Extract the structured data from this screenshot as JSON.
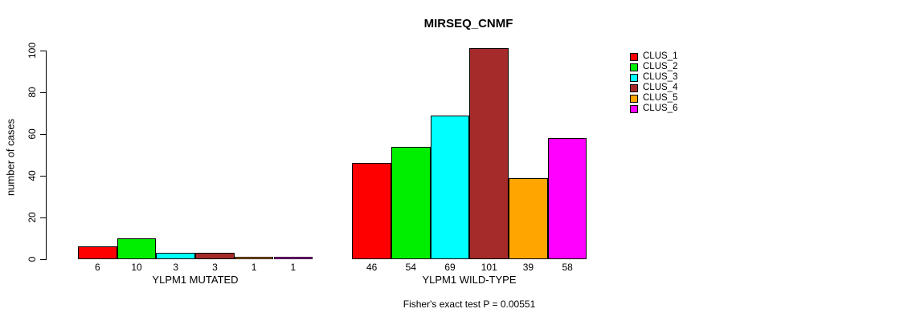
{
  "title": "MIRSEQ_CNMF",
  "y_axis": {
    "label": "number of cases",
    "ticks": [
      0,
      20,
      40,
      60,
      80,
      100
    ]
  },
  "footer": "Fisher's exact test P = 0.00551",
  "legend": {
    "entries": [
      {
        "label": "CLUS_1",
        "color": "#FF0000"
      },
      {
        "label": "CLUS_2",
        "color": "#00EE00"
      },
      {
        "label": "CLUS_3",
        "color": "#00FFFF"
      },
      {
        "label": "CLUS_4",
        "color": "#A52A2A"
      },
      {
        "label": "CLUS_5",
        "color": "#FFA500"
      },
      {
        "label": "CLUS_6",
        "color": "#FF00FF"
      }
    ]
  },
  "chart_data": {
    "type": "bar",
    "title": "MIRSEQ_CNMF",
    "ylabel": "number of cases",
    "ylim": [
      0,
      100
    ],
    "yticks": [
      0,
      20,
      40,
      60,
      80,
      100
    ],
    "grid": false,
    "legend_position": "right",
    "series": [
      "CLUS_1",
      "CLUS_2",
      "CLUS_3",
      "CLUS_4",
      "CLUS_5",
      "CLUS_6"
    ],
    "series_colors": [
      "#FF0000",
      "#00EE00",
      "#00FFFF",
      "#A52A2A",
      "#FFA500",
      "#FF00FF"
    ],
    "groups": [
      {
        "label": "YLPM1 MUTATED",
        "values": [
          6,
          10,
          3,
          3,
          1,
          1
        ]
      },
      {
        "label": "YLPM1 WILD-TYPE",
        "values": [
          46,
          54,
          69,
          101,
          39,
          58
        ]
      }
    ],
    "annotation": "Fisher's exact test P = 0.00551"
  }
}
